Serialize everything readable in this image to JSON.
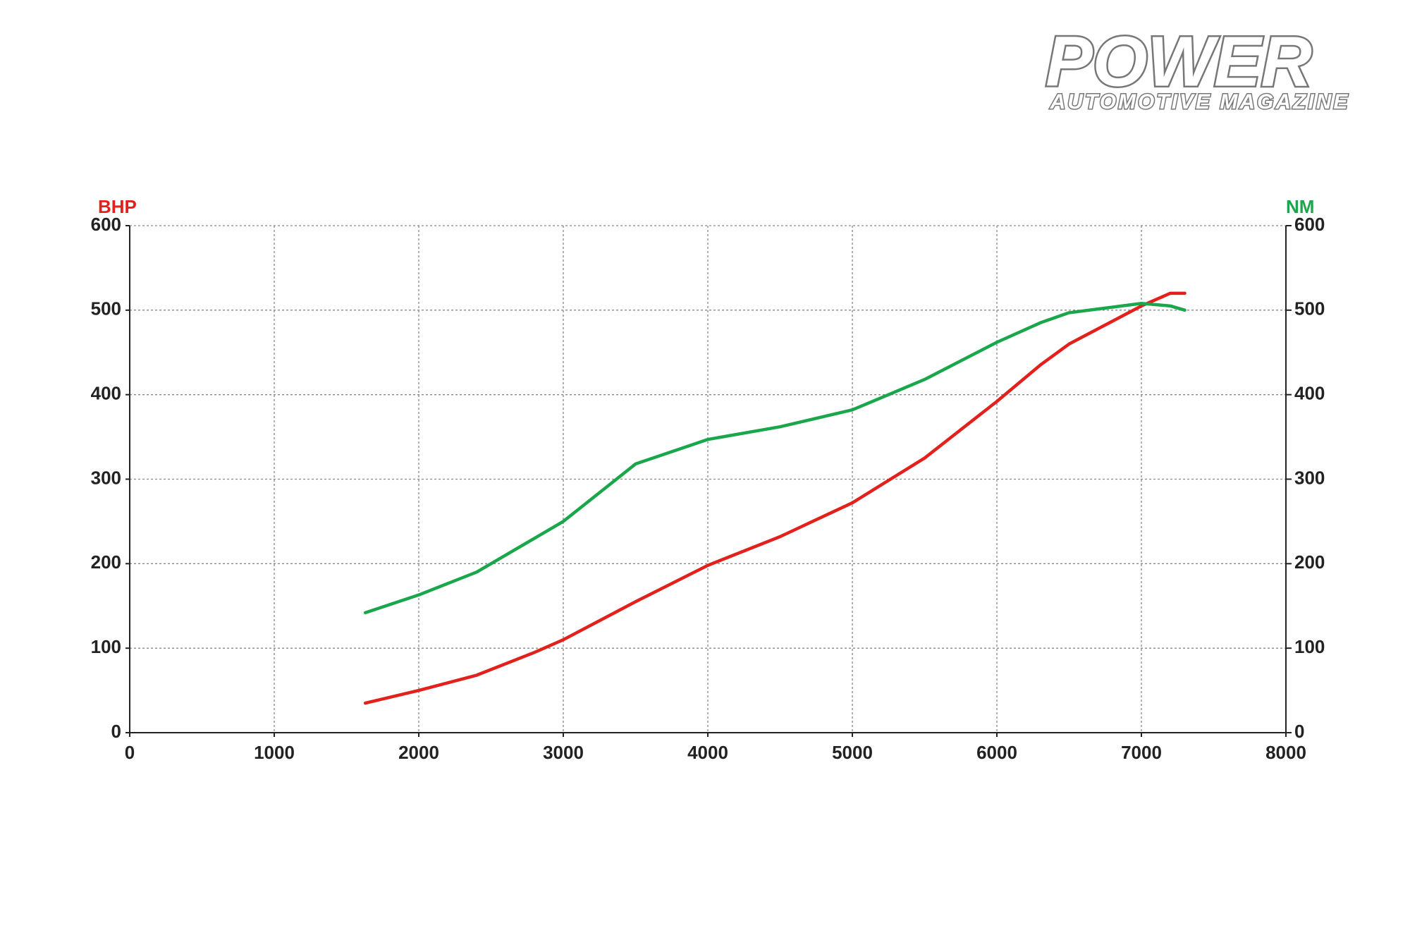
{
  "logo": {
    "title": "POWER",
    "subtitle": "AUTOMOTIVE MAGAZINE"
  },
  "chart_data": {
    "type": "line",
    "y_label": "BHP",
    "y2_label": "NM",
    "x": [
      1630,
      2000,
      2400,
      2800,
      3000,
      3500,
      4000,
      4500,
      5000,
      5500,
      6000,
      6300,
      6500,
      7000,
      7200,
      7300
    ],
    "series": [
      {
        "name": "BHP",
        "color": "#e3211c",
        "axis": "y",
        "values": [
          35,
          50,
          68,
          95,
          110,
          155,
          198,
          232,
          272,
          325,
          392,
          435,
          460,
          505,
          520,
          520
        ]
      },
      {
        "name": "NM",
        "color": "#1aa64a",
        "axis": "y2",
        "values": [
          142,
          163,
          190,
          230,
          250,
          318,
          347,
          362,
          382,
          418,
          462,
          485,
          497,
          508,
          505,
          500
        ]
      }
    ],
    "xlim": [
      0,
      8000
    ],
    "xticks": [
      0,
      1000,
      2000,
      3000,
      4000,
      5000,
      6000,
      7000,
      8000
    ],
    "ylim": [
      0,
      600
    ],
    "yticks": [
      0,
      100,
      200,
      300,
      400,
      500,
      600
    ],
    "y2lim": [
      0,
      600
    ],
    "y2ticks": [
      0,
      100,
      200,
      300,
      400,
      500,
      600
    ],
    "grid": true
  }
}
